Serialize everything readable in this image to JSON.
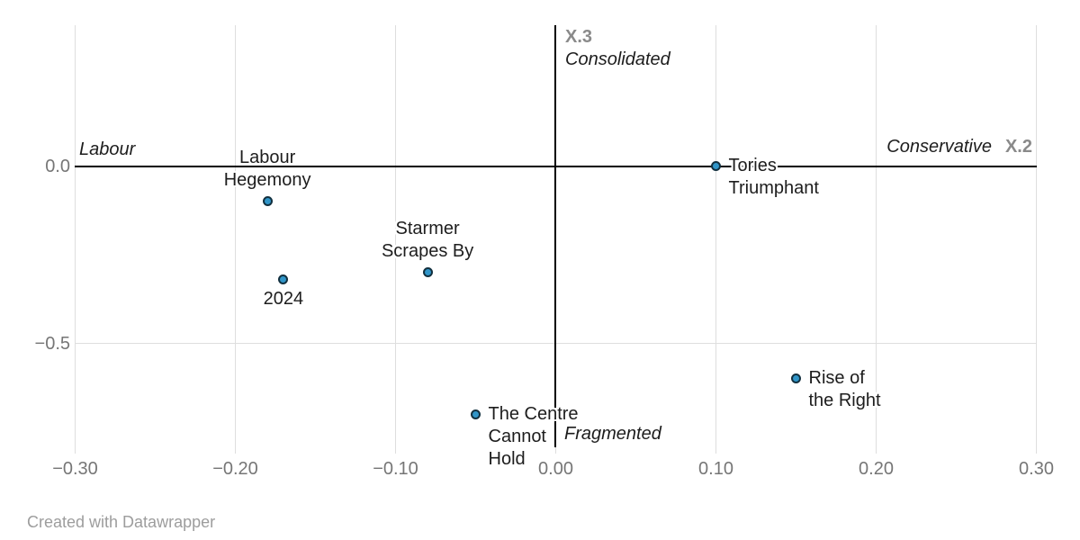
{
  "chart": {
    "footer": "Created with Datawrapper"
  },
  "chart_data": {
    "type": "scatter",
    "title": "",
    "x_axis": {
      "code": "X.2",
      "neg_label": "Labour",
      "pos_label": "Conservative",
      "range": [
        -0.3,
        0.3
      ],
      "ticks": [
        {
          "v": -0.3,
          "label": "−0.30"
        },
        {
          "v": -0.2,
          "label": "−0.20"
        },
        {
          "v": -0.1,
          "label": "−0.10"
        },
        {
          "v": 0.0,
          "label": "0.00"
        },
        {
          "v": 0.1,
          "label": "0.10"
        },
        {
          "v": 0.2,
          "label": "0.20"
        },
        {
          "v": 0.3,
          "label": "0.30"
        }
      ]
    },
    "y_axis": {
      "code": "X.3",
      "pos_label": "Consolidated",
      "neg_label": "Fragmented",
      "range": [
        -0.8,
        0.4
      ],
      "ticks": [
        {
          "v": 0.0,
          "label": "0.0"
        },
        {
          "v": -0.5,
          "label": "−0.5"
        }
      ]
    },
    "grid": true,
    "legend": "none",
    "points": [
      {
        "label": "Labour Hegemony",
        "x": -0.18,
        "y": -0.1,
        "label_lines": [
          "Labour",
          "Hegemony"
        ],
        "label_position": "top"
      },
      {
        "label": "2024",
        "x": -0.17,
        "y": -0.32,
        "label_lines": [
          "2024"
        ],
        "label_position": "bottom"
      },
      {
        "label": "Starmer Scrapes By",
        "x": -0.08,
        "y": -0.3,
        "label_lines": [
          "Starmer",
          "Scrapes By"
        ],
        "label_position": "top"
      },
      {
        "label": "Tories Triumphant",
        "x": 0.1,
        "y": 0.0,
        "label_lines": [
          "Tories",
          "Triumphant"
        ],
        "label_position": "right"
      },
      {
        "label": "Rise of the Right",
        "x": 0.15,
        "y": -0.6,
        "label_lines": [
          "Rise of",
          "the Right"
        ],
        "label_position": "right"
      },
      {
        "label": "The Centre Cannot Hold",
        "x": -0.05,
        "y": -0.7,
        "label_lines": [
          "The Centre",
          "Cannot",
          "Hold"
        ],
        "label_position": "right"
      }
    ],
    "colors": {
      "point_fill": "#3095c8",
      "point_stroke": "#12303f",
      "axis": "#000000",
      "grid": "#dedede",
      "tick_text": "#767676",
      "label_text": "#1d1d1d",
      "axis_code_text": "#8a8a8a",
      "credit_text": "#9d9d9d"
    }
  }
}
